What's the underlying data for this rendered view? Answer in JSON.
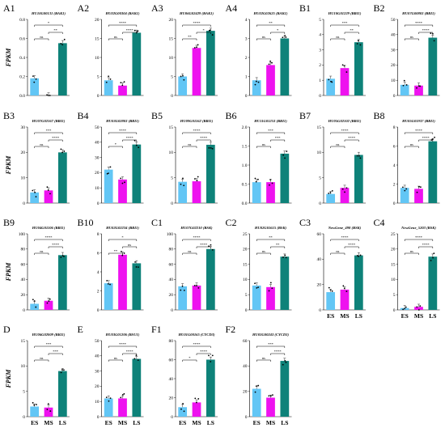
{
  "colors": {
    "ES": "#62c6f5",
    "MS": "#ee12ef",
    "LS": "#0e8279"
  },
  "chart_data": {
    "type": "bar",
    "categories": [
      "ES",
      "MS",
      "LS"
    ],
    "ylabel": "FPKM",
    "panels": [
      {
        "label": "A1",
        "title": "HU10G00131 (BAK1)",
        "ticks": [
          "0.0",
          "0.2",
          "0.4",
          "0.6",
          "0.8"
        ],
        "ylim": [
          0,
          0.8
        ],
        "values": [
          0.18,
          0.0,
          0.55
        ],
        "sig": [
          {
            "a": 0,
            "b": 1,
            "t": "ns"
          },
          {
            "a": 1,
            "b": 2,
            "t": "**"
          },
          {
            "a": 0,
            "b": 2,
            "t": "*"
          }
        ]
      },
      {
        "label": "A2",
        "title": "HU02G00304 (BAK1)",
        "ticks": [
          "0",
          "5",
          "10",
          "15",
          "20"
        ],
        "ylim": [
          0,
          20
        ],
        "values": [
          4,
          2.6,
          16.5
        ],
        "sig": [
          {
            "a": 0,
            "b": 1,
            "t": "ns"
          },
          {
            "a": 1,
            "b": 2,
            "t": "****"
          },
          {
            "a": 0,
            "b": 2,
            "t": "****"
          }
        ]
      },
      {
        "label": "A3",
        "title": "HU06G02429 (BAK1)",
        "ticks": [
          "0",
          "5",
          "10",
          "15",
          "20"
        ],
        "ylim": [
          0,
          20
        ],
        "values": [
          5,
          12.5,
          17
        ],
        "sig": [
          {
            "a": 0,
            "b": 1,
            "t": "**"
          },
          {
            "a": 1,
            "b": 2,
            "t": "*"
          },
          {
            "a": 0,
            "b": 2,
            "t": "****"
          }
        ]
      },
      {
        "label": "A4",
        "title": "HU02G02625 (BAK1)",
        "ticks": [
          "0",
          "1",
          "2",
          "3",
          "4"
        ],
        "ylim": [
          0,
          4
        ],
        "values": [
          0.8,
          1.6,
          3.0
        ],
        "sig": [
          {
            "a": 0,
            "b": 1,
            "t": "ns"
          },
          {
            "a": 1,
            "b": 2,
            "t": "*"
          },
          {
            "a": 0,
            "b": 2,
            "t": "**"
          }
        ]
      },
      {
        "label": "B1",
        "title": "HU10G01229 (BRI1)",
        "ticks": [
          "0",
          "1",
          "2",
          "3",
          "4",
          "5"
        ],
        "ylim": [
          0,
          5
        ],
        "values": [
          1.1,
          1.8,
          3.5
        ],
        "sig": [
          {
            "a": 0,
            "b": 1,
            "t": "ns"
          },
          {
            "a": 1,
            "b": 2,
            "t": "**"
          },
          {
            "a": 0,
            "b": 2,
            "t": "***"
          }
        ]
      },
      {
        "label": "B2",
        "title": "HU07G00803 (BRI1)",
        "ticks": [
          "0",
          "10",
          "20",
          "30",
          "40",
          "50"
        ],
        "ylim": [
          0,
          50
        ],
        "values": [
          7,
          6.5,
          38
        ],
        "sig": [
          {
            "a": 0,
            "b": 1,
            "t": "ns"
          },
          {
            "a": 1,
            "b": 2,
            "t": "****"
          },
          {
            "a": 0,
            "b": 2,
            "t": "****"
          }
        ]
      },
      {
        "label": "B3",
        "title": "HU07G02167 (BRI1)",
        "ticks": [
          "0",
          "10",
          "20",
          "30"
        ],
        "ylim": [
          0,
          30
        ],
        "values": [
          4.2,
          5,
          20
        ],
        "sig": [
          {
            "a": 0,
            "b": 1,
            "t": "ns"
          },
          {
            "a": 1,
            "b": 2,
            "t": "****"
          },
          {
            "a": 0,
            "b": 2,
            "t": "***"
          }
        ]
      },
      {
        "label": "B4",
        "title": "HU03G02803 (BRI1)",
        "ticks": [
          "0",
          "10",
          "20",
          "30",
          "40",
          "50"
        ],
        "ylim": [
          0,
          50
        ],
        "values": [
          22,
          15.5,
          38.5
        ],
        "sig": [
          {
            "a": 0,
            "b": 1,
            "t": "*"
          },
          {
            "a": 1,
            "b": 2,
            "t": "****"
          },
          {
            "a": 0,
            "b": 2,
            "t": "****"
          }
        ]
      },
      {
        "label": "B5",
        "title": "HU09G01162 (BRI1)",
        "ticks": [
          "0",
          "5",
          "10",
          "15"
        ],
        "ylim": [
          0,
          15
        ],
        "values": [
          4.2,
          4.3,
          11.5
        ],
        "sig": [
          {
            "a": 0,
            "b": 1,
            "t": "ns"
          },
          {
            "a": 1,
            "b": 2,
            "t": "****"
          },
          {
            "a": 0,
            "b": 2,
            "t": "****"
          }
        ]
      },
      {
        "label": "B6",
        "title": "HU11G01253 (BRI1)",
        "ticks": [
          "0.0",
          "0.5",
          "1.0",
          "1.5",
          "2.0"
        ],
        "ylim": [
          0,
          2
        ],
        "values": [
          0.55,
          0.55,
          1.3
        ],
        "sig": [
          {
            "a": 0,
            "b": 1,
            "t": "ns"
          },
          {
            "a": 1,
            "b": 2,
            "t": "***"
          },
          {
            "a": 0,
            "b": 2,
            "t": "***"
          }
        ]
      },
      {
        "label": "B7",
        "title": "HU05G02102 (BRI1)",
        "ticks": [
          "0",
          "5",
          "10",
          "15"
        ],
        "ylim": [
          0,
          15
        ],
        "values": [
          1.8,
          3,
          9.5
        ],
        "sig": [
          {
            "a": 0,
            "b": 1,
            "t": "ns"
          },
          {
            "a": 1,
            "b": 2,
            "t": "****"
          },
          {
            "a": 0,
            "b": 2,
            "t": "****"
          }
        ]
      },
      {
        "label": "B8",
        "title": "HU05G01937 (BRI1)",
        "ticks": [
          "0",
          "2",
          "4",
          "6",
          "8"
        ],
        "ylim": [
          0,
          8
        ],
        "values": [
          1.6,
          1.5,
          6.5
        ],
        "sig": [
          {
            "a": 0,
            "b": 1,
            "t": "ns"
          },
          {
            "a": 1,
            "b": 2,
            "t": "****"
          },
          {
            "a": 0,
            "b": 2,
            "t": "****"
          }
        ]
      },
      {
        "label": "B9",
        "title": "HU04G01106 (BRI1)",
        "ticks": [
          "0",
          "20",
          "40",
          "60",
          "80",
          "100"
        ],
        "ylim": [
          0,
          100
        ],
        "values": [
          8,
          12,
          72
        ],
        "sig": [
          {
            "a": 0,
            "b": 1,
            "t": "ns"
          },
          {
            "a": 1,
            "b": 2,
            "t": "****"
          },
          {
            "a": 0,
            "b": 2,
            "t": "****"
          }
        ]
      },
      {
        "label": "B10",
        "title": "HU02G02234 (BRI1)",
        "ticks": [
          "0",
          "2",
          "4",
          "6",
          "8"
        ],
        "ylim": [
          0,
          8
        ],
        "values": [
          2.8,
          5.8,
          4.9
        ],
        "sig": [
          {
            "a": 0,
            "b": 1,
            "t": "**"
          },
          {
            "a": 1,
            "b": 2,
            "t": "ns"
          },
          {
            "a": 0,
            "b": 2,
            "t": "*"
          }
        ]
      },
      {
        "label": "C1",
        "title": "HU07G02210 (BSK)",
        "ticks": [
          "0",
          "20",
          "40",
          "60",
          "80",
          "100"
        ],
        "ylim": [
          0,
          100
        ],
        "values": [
          31,
          32,
          80
        ],
        "sig": [
          {
            "a": 0,
            "b": 1,
            "t": "ns"
          },
          {
            "a": 1,
            "b": 2,
            "t": "****"
          },
          {
            "a": 0,
            "b": 2,
            "t": "****"
          }
        ]
      },
      {
        "label": "C2",
        "title": "HU02G01615 (BSK)",
        "ticks": [
          "0",
          "5",
          "10",
          "15",
          "20",
          "25"
        ],
        "ylim": [
          0,
          25
        ],
        "values": [
          8,
          7.5,
          17.5
        ],
        "sig": [
          {
            "a": 0,
            "b": 1,
            "t": "ns"
          },
          {
            "a": 1,
            "b": 2,
            "t": "**"
          },
          {
            "a": 0,
            "b": 2,
            "t": "**"
          }
        ]
      },
      {
        "label": "C3",
        "title": "NewGene_498 (BSK)",
        "ticks": [
          "0",
          "20",
          "40",
          "60"
        ],
        "ylim": [
          0,
          60
        ],
        "values": [
          14,
          16,
          43
        ],
        "sig": [
          {
            "a": 0,
            "b": 1,
            "t": "ns"
          },
          {
            "a": 1,
            "b": 2,
            "t": "****"
          },
          {
            "a": 0,
            "b": 2,
            "t": "****"
          }
        ]
      },
      {
        "label": "C4",
        "title": "NewGene_5203 (BSK)",
        "ticks": [
          "0",
          "5",
          "10",
          "15",
          "20",
          "25"
        ],
        "ylim": [
          0,
          25
        ],
        "values": [
          0.6,
          1.0,
          17.5
        ],
        "sig": [
          {
            "a": 0,
            "b": 1,
            "t": "ns"
          },
          {
            "a": 1,
            "b": 2,
            "t": "****"
          },
          {
            "a": 0,
            "b": 2,
            "t": "****"
          }
        ]
      },
      {
        "label": "D",
        "title": "HU06G02009 (BKI1)",
        "ticks": [
          "0",
          "5",
          "10",
          "15"
        ],
        "ylim": [
          0,
          15
        ],
        "values": [
          2,
          1.8,
          9
        ],
        "sig": [
          {
            "a": 0,
            "b": 1,
            "t": "ns"
          },
          {
            "a": 1,
            "b": 2,
            "t": "***"
          },
          {
            "a": 0,
            "b": 2,
            "t": "***"
          }
        ]
      },
      {
        "label": "E",
        "title": "HU03G01206 (BSU1)",
        "ticks": [
          "0",
          "10",
          "20",
          "30",
          "40",
          "50"
        ],
        "ylim": [
          0,
          50
        ],
        "values": [
          12,
          12,
          38
        ],
        "sig": [
          {
            "a": 0,
            "b": 1,
            "t": "ns"
          },
          {
            "a": 1,
            "b": 2,
            "t": "****"
          },
          {
            "a": 0,
            "b": 2,
            "t": "****"
          }
        ]
      },
      {
        "label": "F1",
        "title": "HU01G00165 (CYCD3)",
        "ticks": [
          "0",
          "20",
          "40",
          "60",
          "80"
        ],
        "ylim": [
          0,
          80
        ],
        "values": [
          10,
          15,
          60
        ],
        "sig": [
          {
            "a": 0,
            "b": 1,
            "t": "*"
          },
          {
            "a": 1,
            "b": 2,
            "t": "****"
          },
          {
            "a": 0,
            "b": 2,
            "t": "****"
          }
        ]
      },
      {
        "label": "F2",
        "title": "HU03G00243 (CYCD3)",
        "ticks": [
          "0",
          "20",
          "40",
          "60"
        ],
        "ylim": [
          0,
          60
        ],
        "values": [
          22,
          15,
          44
        ],
        "sig": [
          {
            "a": 0,
            "b": 1,
            "t": "ns"
          },
          {
            "a": 1,
            "b": 2,
            "t": "****"
          },
          {
            "a": 0,
            "b": 2,
            "t": "***"
          }
        ]
      }
    ]
  }
}
